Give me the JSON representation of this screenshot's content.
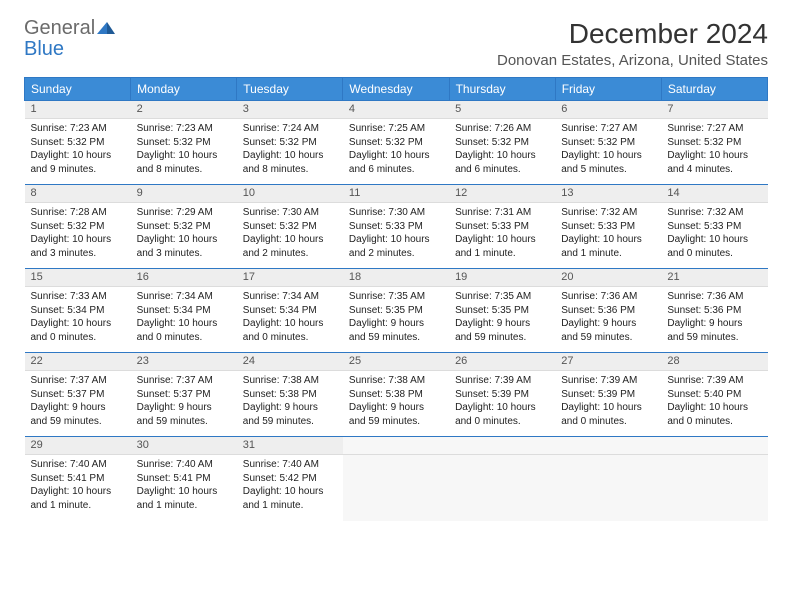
{
  "brand": {
    "text_general": "General",
    "text_blue": "Blue",
    "general_color": "#6b6b6b",
    "blue_color": "#2f78c4"
  },
  "header": {
    "month_title": "December 2024",
    "location": "Donovan Estates, Arizona, United States"
  },
  "theme": {
    "header_bg": "#3b8bd6",
    "header_border": "#2f78c4",
    "daynum_bg": "#eeeeee",
    "row_divider": "#2f78c4",
    "body_bg": "#ffffff",
    "empty_bg": "#f7f7f7",
    "text_color": "#222222",
    "header_font_size": 12,
    "daynum_font_size": 11,
    "body_font_size": 10
  },
  "calendar": {
    "day_headers": [
      "Sunday",
      "Monday",
      "Tuesday",
      "Wednesday",
      "Thursday",
      "Friday",
      "Saturday"
    ],
    "weeks": [
      [
        {
          "n": "1",
          "sunrise": "Sunrise: 7:23 AM",
          "sunset": "Sunset: 5:32 PM",
          "day1": "Daylight: 10 hours",
          "day2": "and 9 minutes."
        },
        {
          "n": "2",
          "sunrise": "Sunrise: 7:23 AM",
          "sunset": "Sunset: 5:32 PM",
          "day1": "Daylight: 10 hours",
          "day2": "and 8 minutes."
        },
        {
          "n": "3",
          "sunrise": "Sunrise: 7:24 AM",
          "sunset": "Sunset: 5:32 PM",
          "day1": "Daylight: 10 hours",
          "day2": "and 8 minutes."
        },
        {
          "n": "4",
          "sunrise": "Sunrise: 7:25 AM",
          "sunset": "Sunset: 5:32 PM",
          "day1": "Daylight: 10 hours",
          "day2": "and 6 minutes."
        },
        {
          "n": "5",
          "sunrise": "Sunrise: 7:26 AM",
          "sunset": "Sunset: 5:32 PM",
          "day1": "Daylight: 10 hours",
          "day2": "and 6 minutes."
        },
        {
          "n": "6",
          "sunrise": "Sunrise: 7:27 AM",
          "sunset": "Sunset: 5:32 PM",
          "day1": "Daylight: 10 hours",
          "day2": "and 5 minutes."
        },
        {
          "n": "7",
          "sunrise": "Sunrise: 7:27 AM",
          "sunset": "Sunset: 5:32 PM",
          "day1": "Daylight: 10 hours",
          "day2": "and 4 minutes."
        }
      ],
      [
        {
          "n": "8",
          "sunrise": "Sunrise: 7:28 AM",
          "sunset": "Sunset: 5:32 PM",
          "day1": "Daylight: 10 hours",
          "day2": "and 3 minutes."
        },
        {
          "n": "9",
          "sunrise": "Sunrise: 7:29 AM",
          "sunset": "Sunset: 5:32 PM",
          "day1": "Daylight: 10 hours",
          "day2": "and 3 minutes."
        },
        {
          "n": "10",
          "sunrise": "Sunrise: 7:30 AM",
          "sunset": "Sunset: 5:32 PM",
          "day1": "Daylight: 10 hours",
          "day2": "and 2 minutes."
        },
        {
          "n": "11",
          "sunrise": "Sunrise: 7:30 AM",
          "sunset": "Sunset: 5:33 PM",
          "day1": "Daylight: 10 hours",
          "day2": "and 2 minutes."
        },
        {
          "n": "12",
          "sunrise": "Sunrise: 7:31 AM",
          "sunset": "Sunset: 5:33 PM",
          "day1": "Daylight: 10 hours",
          "day2": "and 1 minute."
        },
        {
          "n": "13",
          "sunrise": "Sunrise: 7:32 AM",
          "sunset": "Sunset: 5:33 PM",
          "day1": "Daylight: 10 hours",
          "day2": "and 1 minute."
        },
        {
          "n": "14",
          "sunrise": "Sunrise: 7:32 AM",
          "sunset": "Sunset: 5:33 PM",
          "day1": "Daylight: 10 hours",
          "day2": "and 0 minutes."
        }
      ],
      [
        {
          "n": "15",
          "sunrise": "Sunrise: 7:33 AM",
          "sunset": "Sunset: 5:34 PM",
          "day1": "Daylight: 10 hours",
          "day2": "and 0 minutes."
        },
        {
          "n": "16",
          "sunrise": "Sunrise: 7:34 AM",
          "sunset": "Sunset: 5:34 PM",
          "day1": "Daylight: 10 hours",
          "day2": "and 0 minutes."
        },
        {
          "n": "17",
          "sunrise": "Sunrise: 7:34 AM",
          "sunset": "Sunset: 5:34 PM",
          "day1": "Daylight: 10 hours",
          "day2": "and 0 minutes."
        },
        {
          "n": "18",
          "sunrise": "Sunrise: 7:35 AM",
          "sunset": "Sunset: 5:35 PM",
          "day1": "Daylight: 9 hours",
          "day2": "and 59 minutes."
        },
        {
          "n": "19",
          "sunrise": "Sunrise: 7:35 AM",
          "sunset": "Sunset: 5:35 PM",
          "day1": "Daylight: 9 hours",
          "day2": "and 59 minutes."
        },
        {
          "n": "20",
          "sunrise": "Sunrise: 7:36 AM",
          "sunset": "Sunset: 5:36 PM",
          "day1": "Daylight: 9 hours",
          "day2": "and 59 minutes."
        },
        {
          "n": "21",
          "sunrise": "Sunrise: 7:36 AM",
          "sunset": "Sunset: 5:36 PM",
          "day1": "Daylight: 9 hours",
          "day2": "and 59 minutes."
        }
      ],
      [
        {
          "n": "22",
          "sunrise": "Sunrise: 7:37 AM",
          "sunset": "Sunset: 5:37 PM",
          "day1": "Daylight: 9 hours",
          "day2": "and 59 minutes."
        },
        {
          "n": "23",
          "sunrise": "Sunrise: 7:37 AM",
          "sunset": "Sunset: 5:37 PM",
          "day1": "Daylight: 9 hours",
          "day2": "and 59 minutes."
        },
        {
          "n": "24",
          "sunrise": "Sunrise: 7:38 AM",
          "sunset": "Sunset: 5:38 PM",
          "day1": "Daylight: 9 hours",
          "day2": "and 59 minutes."
        },
        {
          "n": "25",
          "sunrise": "Sunrise: 7:38 AM",
          "sunset": "Sunset: 5:38 PM",
          "day1": "Daylight: 9 hours",
          "day2": "and 59 minutes."
        },
        {
          "n": "26",
          "sunrise": "Sunrise: 7:39 AM",
          "sunset": "Sunset: 5:39 PM",
          "day1": "Daylight: 10 hours",
          "day2": "and 0 minutes."
        },
        {
          "n": "27",
          "sunrise": "Sunrise: 7:39 AM",
          "sunset": "Sunset: 5:39 PM",
          "day1": "Daylight: 10 hours",
          "day2": "and 0 minutes."
        },
        {
          "n": "28",
          "sunrise": "Sunrise: 7:39 AM",
          "sunset": "Sunset: 5:40 PM",
          "day1": "Daylight: 10 hours",
          "day2": "and 0 minutes."
        }
      ],
      [
        {
          "n": "29",
          "sunrise": "Sunrise: 7:40 AM",
          "sunset": "Sunset: 5:41 PM",
          "day1": "Daylight: 10 hours",
          "day2": "and 1 minute."
        },
        {
          "n": "30",
          "sunrise": "Sunrise: 7:40 AM",
          "sunset": "Sunset: 5:41 PM",
          "day1": "Daylight: 10 hours",
          "day2": "and 1 minute."
        },
        {
          "n": "31",
          "sunrise": "Sunrise: 7:40 AM",
          "sunset": "Sunset: 5:42 PM",
          "day1": "Daylight: 10 hours",
          "day2": "and 1 minute."
        },
        null,
        null,
        null,
        null
      ]
    ]
  }
}
